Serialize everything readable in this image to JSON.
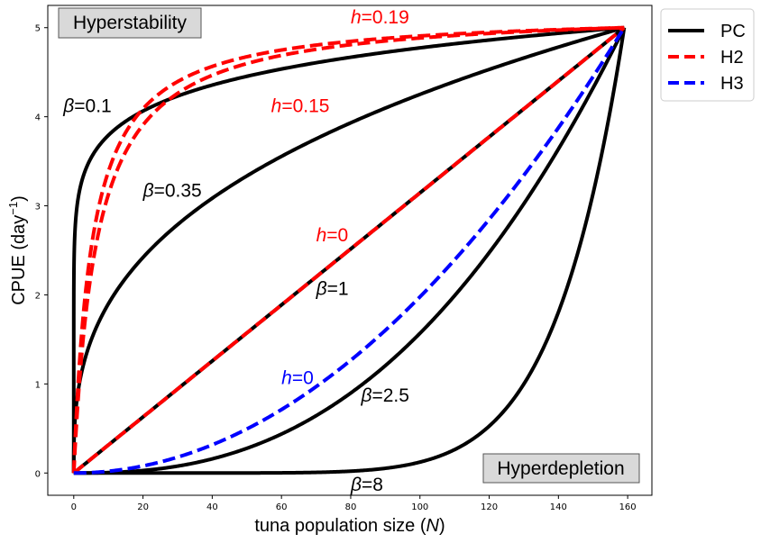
{
  "chart_data": {
    "type": "line",
    "xlabel": "tuna population size (N)",
    "ylabel": "CPUE (day⁻¹)",
    "xlim": [
      -7.5,
      167
    ],
    "ylim": [
      -0.25,
      5.25
    ],
    "xticks": [
      0,
      20,
      40,
      60,
      80,
      100,
      120,
      140,
      160
    ],
    "yticks": [
      0,
      1,
      2,
      3,
      4,
      5
    ],
    "xmax_data": 159,
    "ymax_data": 5,
    "grid": false,
    "legend_position": "outside-top-right",
    "legend": [
      {
        "label": "PC",
        "color": "#000000",
        "dash": "solid"
      },
      {
        "label": "H2",
        "color": "#ff0000",
        "dash": "dashed"
      },
      {
        "label": "H3",
        "color": "#0000ff",
        "dash": "dashed"
      }
    ],
    "series": [
      {
        "name": "PC",
        "model": "power",
        "param": 0.1,
        "color": "#000000",
        "dash": "solid",
        "param_label": "β=0.1"
      },
      {
        "name": "PC",
        "model": "power",
        "param": 0.35,
        "color": "#000000",
        "dash": "solid",
        "param_label": "β=0.35"
      },
      {
        "name": "PC",
        "model": "power",
        "param": 1,
        "color": "#000000",
        "dash": "solid",
        "param_label": "β=1"
      },
      {
        "name": "PC",
        "model": "power",
        "param": 2.5,
        "color": "#000000",
        "dash": "solid",
        "param_label": "β=2.5"
      },
      {
        "name": "PC",
        "model": "power",
        "param": 8,
        "color": "#000000",
        "dash": "solid",
        "param_label": "β=8"
      },
      {
        "name": "H2",
        "model": "holling2",
        "param": 0.19,
        "color": "#ff0000",
        "dash": "dashed",
        "param_label": "h=0.19"
      },
      {
        "name": "H2",
        "model": "holling2",
        "param": 0.15,
        "color": "#ff0000",
        "dash": "dashed",
        "param_label": "h=0.15"
      },
      {
        "name": "H2",
        "model": "holling2",
        "param": 0,
        "color": "#ff0000",
        "dash": "dashed",
        "param_label": "h=0"
      },
      {
        "name": "H3",
        "model": "holling3",
        "param": 0,
        "color": "#0000ff",
        "dash": "dashed",
        "param_label": "h=0"
      }
    ],
    "annotations": [
      {
        "text": "β=0.1",
        "x": -3,
        "y": 4.05,
        "color": "#000000",
        "sym": "β",
        "rest": "=0.1"
      },
      {
        "text": "β=0.35",
        "x": 20,
        "y": 3.1,
        "color": "#000000",
        "sym": "β",
        "rest": "=0.35"
      },
      {
        "text": "β=1",
        "x": 70,
        "y": 2.0,
        "color": "#000000",
        "sym": "β",
        "rest": "=1"
      },
      {
        "text": "β=2.5",
        "x": 83,
        "y": 0.8,
        "color": "#000000",
        "sym": "β",
        "rest": "=2.5"
      },
      {
        "text": "β=8",
        "x": 80,
        "y": -0.2,
        "color": "#000000",
        "sym": "β",
        "rest": "=8"
      },
      {
        "text": "h=0.19",
        "x": 80,
        "y": 5.05,
        "color": "#ff0000",
        "sym": "h",
        "rest": "=0.19"
      },
      {
        "text": "h=0.15",
        "x": 57,
        "y": 4.05,
        "color": "#ff0000",
        "sym": "h",
        "rest": "=0.15"
      },
      {
        "text": "h=0",
        "x": 70,
        "y": 2.6,
        "color": "#ff0000",
        "sym": "h",
        "rest": "=0"
      },
      {
        "text": "h=0",
        "x": 60,
        "y": 1.0,
        "color": "#0000ff",
        "sym": "h",
        "rest": "=0"
      }
    ],
    "boxes": [
      {
        "text": "Hyperstability",
        "position": "top-left"
      },
      {
        "text": "Hyperdepletion",
        "position": "bottom-right"
      }
    ]
  }
}
